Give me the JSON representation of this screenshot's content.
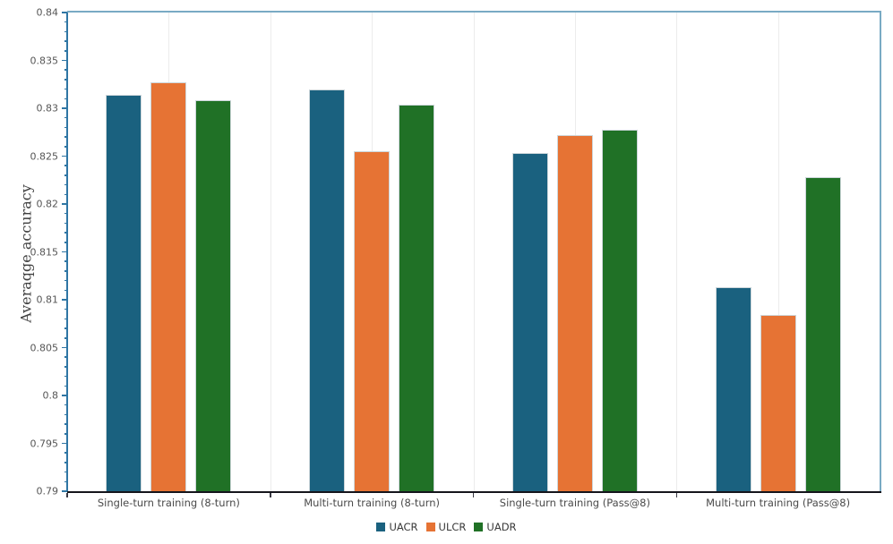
{
  "chart_data": {
    "type": "bar",
    "title": "",
    "xlabel": "",
    "ylabel": "Averaqge accuracy",
    "categories": [
      "Single-turn training (8-turn)",
      "Multi-turn training (8-turn)",
      "Single-turn training (Pass@8)",
      "Multi-turn training (Pass@8)"
    ],
    "series": [
      {
        "name": "UACR",
        "color": "#1a617f",
        "values": [
          0.8314,
          0.832,
          0.8253,
          0.8113
        ]
      },
      {
        "name": "ULCR",
        "color": "#e67334",
        "values": [
          0.8327,
          0.8255,
          0.8272,
          0.8084
        ]
      },
      {
        "name": "UADR",
        "color": "#207126",
        "values": [
          0.8308,
          0.8304,
          0.8278,
          0.8228
        ]
      }
    ],
    "ylim": [
      0.79,
      0.84
    ],
    "ytick_step": 0.005,
    "yminor_step": 0.001,
    "grid": "vertical-faint",
    "legend_position": "bottom-center",
    "colors": {
      "y_axis": "#2f76a4",
      "x_axis": "#15151c",
      "frame": "#79aac4",
      "gridline": "#ececec",
      "tick_label": "#565656",
      "category_label": "#4a4a4a",
      "legend_label": "#383838"
    }
  }
}
